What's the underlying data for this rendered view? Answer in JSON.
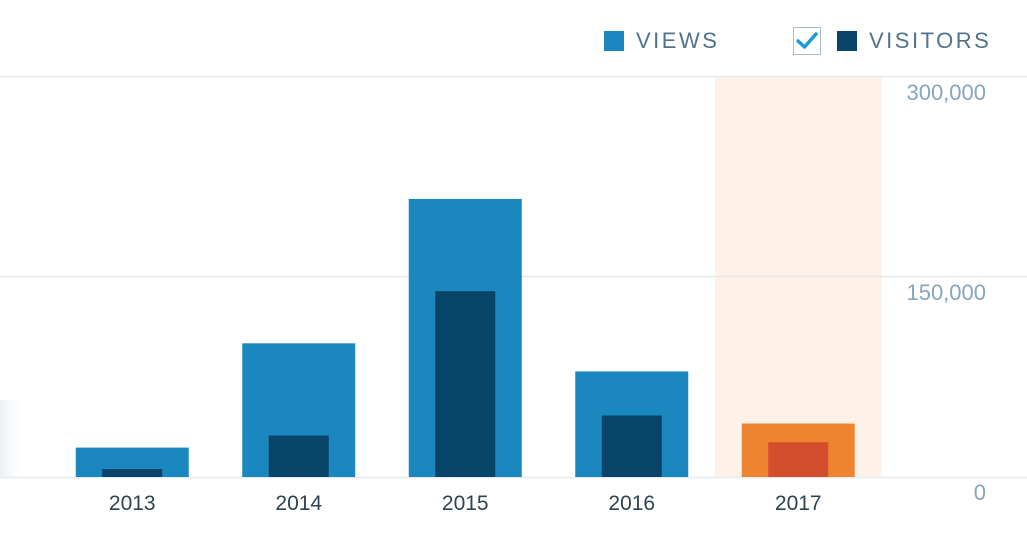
{
  "legend": {
    "views_label": "VIEWS",
    "visitors_label": "VISITORS",
    "visitors_checked": true
  },
  "colors": {
    "views": "#1a87bf",
    "visitors": "#08436a",
    "views_highlight": "#ee8430",
    "visitors_highlight": "#d44e2d",
    "highlight_band": "#fdf1e8",
    "gridline": "#e4eaee",
    "checkmark": "#1a9bd6"
  },
  "chart_data": {
    "type": "bar",
    "categories": [
      "2013",
      "2014",
      "2015",
      "2016",
      "2017"
    ],
    "series": [
      {
        "name": "VIEWS",
        "values": [
          22000,
          100000,
          208000,
          79000,
          40000
        ]
      },
      {
        "name": "VISITORS",
        "values": [
          6000,
          31000,
          139000,
          46000,
          26000
        ]
      }
    ],
    "y_ticks": [
      "0",
      "150,000",
      "300,000"
    ],
    "ylim": [
      0,
      300000
    ],
    "highlighted_category": "2017",
    "grid": true,
    "legend_position": "top-right"
  }
}
